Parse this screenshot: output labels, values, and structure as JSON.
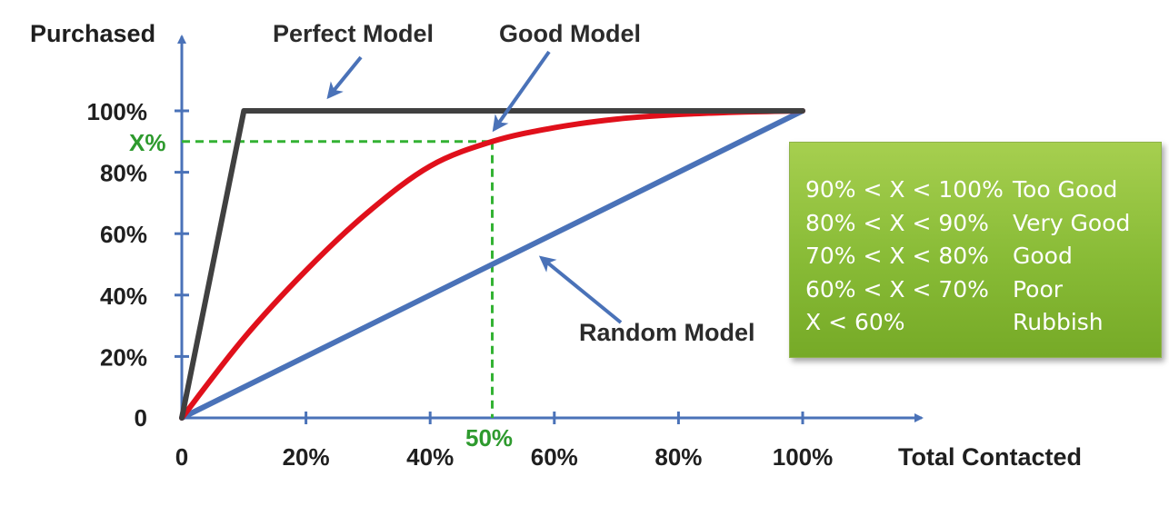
{
  "chart_data": {
    "type": "line",
    "x_axis": {
      "label": "Total Contacted",
      "ticks": [
        "0",
        "20%",
        "40%",
        "60%",
        "80%",
        "100%"
      ],
      "tick_values": [
        0,
        20,
        40,
        60,
        80,
        100
      ],
      "range": [
        0,
        100
      ]
    },
    "y_axis": {
      "label": "Purchased",
      "ticks": [
        "0",
        "20%",
        "40%",
        "60%",
        "80%",
        "100%"
      ],
      "tick_values": [
        0,
        20,
        40,
        60,
        80,
        100
      ],
      "range": [
        0,
        100
      ]
    },
    "series": [
      {
        "name": "Perfect Model",
        "color": "#404040",
        "x": [
          0,
          10,
          100
        ],
        "y": [
          0,
          100,
          100
        ]
      },
      {
        "name": "Good Model",
        "color": "#e0101b",
        "x": [
          0,
          10,
          20,
          30,
          40,
          50,
          60,
          70,
          80,
          90,
          100
        ],
        "y": [
          0,
          26,
          48,
          67,
          82,
          90,
          94.5,
          97.3,
          98.8,
          99.6,
          100
        ]
      },
      {
        "name": "Random Model",
        "color": "#4a72b8",
        "x": [
          0,
          100
        ],
        "y": [
          0,
          100
        ]
      }
    ],
    "markers": {
      "x_marker": {
        "label": "50%",
        "value": 50
      },
      "y_marker": {
        "label": "X%",
        "value": 90
      },
      "color": "#33b233"
    },
    "grid": false,
    "legend": {
      "placement": "right",
      "rows": [
        {
          "range": "90% < X < 100%",
          "grade": "Too Good"
        },
        {
          "range": "80% < X < 90%",
          "grade": "Very Good"
        },
        {
          "range": "70% < X < 80%",
          "grade": "Good"
        },
        {
          "range": "60% < X < 70%",
          "grade": "Poor"
        },
        {
          "range": "X < 60%",
          "grade": "Rubbish"
        }
      ]
    }
  },
  "colors": {
    "axis": "#4a72b8",
    "text": "#1f1f1f",
    "legend_bg": "#8cc03a",
    "legend_text": "#ffffff"
  }
}
